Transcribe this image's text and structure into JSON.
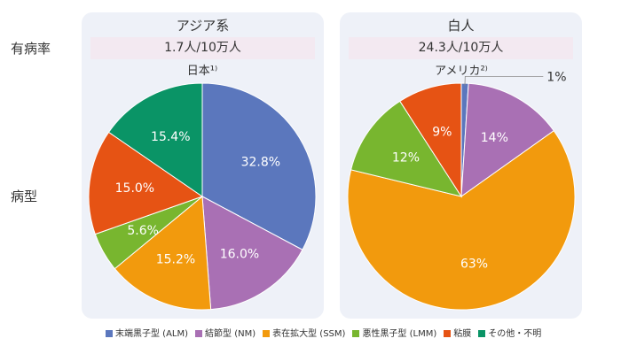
{
  "row_labels": {
    "incidence": "有病率",
    "type": "病型"
  },
  "panels": [
    {
      "title": "アジア系",
      "rate": "1.7人/10万人",
      "subtitle": "日本¹⁾"
    },
    {
      "title": "白人",
      "rate": "24.3人/10万人",
      "subtitle": "アメリカ²⁾"
    }
  ],
  "legend": [
    {
      "label": "末端黒子型 (ALM)",
      "color": "#5b77bd"
    },
    {
      "label": "結節型 (NM)",
      "color": "#a970b4"
    },
    {
      "label": "表在拡大型 (SSM)",
      "color": "#f29a0d"
    },
    {
      "label": "悪性黒子型 (LMM)",
      "color": "#78b62f"
    },
    {
      "label": "粘膜",
      "color": "#e65314"
    },
    {
      "label": "その他・不明",
      "color": "#0a9466"
    }
  ],
  "chart_data": [
    {
      "type": "pie",
      "title": "日本¹⁾",
      "categories": [
        "末端黒子型 (ALM)",
        "結節型 (NM)",
        "表在拡大型 (SSM)",
        "悪性黒子型 (LMM)",
        "粘膜",
        "その他・不明"
      ],
      "values": [
        32.8,
        16.0,
        15.2,
        5.6,
        15.0,
        15.4
      ],
      "labels": [
        "32.8%",
        "16.0%",
        "15.2%",
        "5.6%",
        "15.0%",
        "15.4%"
      ],
      "colors": [
        "#5b77bd",
        "#a970b4",
        "#f29a0d",
        "#78b62f",
        "#e65314",
        "#0a9466"
      ]
    },
    {
      "type": "pie",
      "title": "アメリカ²⁾",
      "categories": [
        "末端黒子型 (ALM)",
        "結節型 (NM)",
        "表在拡大型 (SSM)",
        "悪性黒子型 (LMM)",
        "粘膜"
      ],
      "values": [
        1,
        14,
        63,
        12,
        9
      ],
      "labels": [
        "1%",
        "14%",
        "63%",
        "12%",
        "9%"
      ],
      "colors": [
        "#5b77bd",
        "#a970b4",
        "#f29a0d",
        "#78b62f",
        "#e65314"
      ]
    }
  ]
}
